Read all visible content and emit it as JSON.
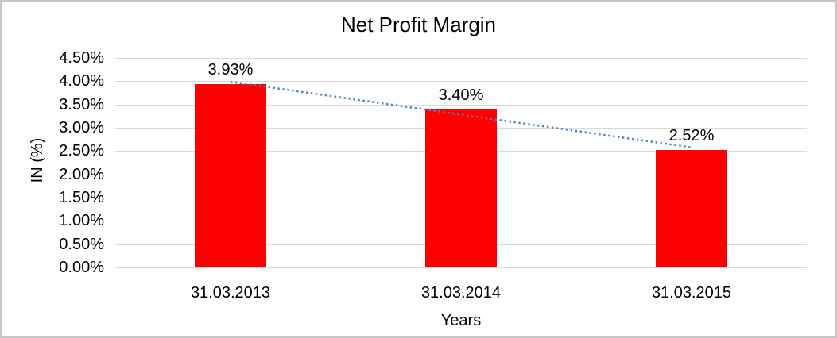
{
  "chart_data": {
    "type": "bar",
    "title": "Net Profit Margin",
    "categories": [
      "31.03.2013",
      "31.03.2014",
      "31.03.2015"
    ],
    "values": [
      3.93,
      3.4,
      2.52
    ],
    "data_labels": [
      "3.93%",
      "3.40%",
      "2.52%"
    ],
    "xlabel": "Years",
    "ylabel": "IN (%)",
    "ylim": [
      0,
      4.5
    ],
    "ytick_step": 0.5,
    "ytick_labels": [
      "0.00%",
      "0.50%",
      "1.00%",
      "1.50%",
      "2.00%",
      "2.50%",
      "3.00%",
      "3.50%",
      "4.00%",
      "4.50%"
    ],
    "grid": true,
    "legend": "none",
    "bar_color": "#ff0000",
    "gridline_color": "#d9d9d9",
    "text_color": "#000000",
    "trendline": {
      "type": "linear",
      "style": "dotted",
      "color": "#4e81bd"
    }
  }
}
